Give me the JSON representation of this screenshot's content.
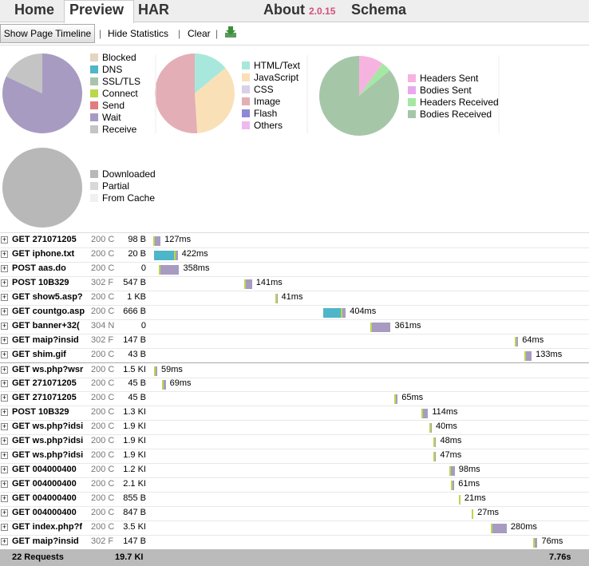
{
  "tabs": {
    "items": [
      "Home",
      "Preview",
      "HAR"
    ],
    "about": "About",
    "version": "2.0.15",
    "schema": "Schema",
    "selected": 1
  },
  "toolbar": {
    "timeline_button": "Show Page Timeline",
    "hide_stats": "Hide Statistics",
    "clear": "Clear"
  },
  "stats": {
    "pies": [
      {
        "slices": [
          {
            "name": "Blocked",
            "color": "#e3d5c0",
            "value": 0
          },
          {
            "name": "DNS",
            "color": "#4fb5c9",
            "value": 0
          },
          {
            "name": "SSL/TLS",
            "color": "#a9c4ad",
            "value": 0
          },
          {
            "name": "Connect",
            "color": "#b9d84a",
            "value": 0
          },
          {
            "name": "Send",
            "color": "#e07d7d",
            "value": 0
          },
          {
            "name": "Wait",
            "color": "#a89bc2",
            "value": 82
          },
          {
            "name": "Receive",
            "color": "#c4c4c4",
            "value": 18
          }
        ]
      },
      {
        "slices": [
          {
            "name": "HTML/Text",
            "color": "#a8e8dc",
            "value": 14
          },
          {
            "name": "JavaScript",
            "color": "#fae0b7",
            "value": 35
          },
          {
            "name": "CSS",
            "color": "#d8d0e8",
            "value": 0
          },
          {
            "name": "Image",
            "color": "#e3aeb6",
            "value": 51
          },
          {
            "name": "Flash",
            "color": "#8e88d8",
            "value": 0
          },
          {
            "name": "Others",
            "color": "#f0b8f0",
            "value": 0
          }
        ]
      },
      {
        "slices": [
          {
            "name": "Headers Sent",
            "color": "#f7b3e0",
            "value": 10
          },
          {
            "name": "Bodies Sent",
            "color": "#e7a8f0",
            "value": 0
          },
          {
            "name": "Headers Received",
            "color": "#a4e8a4",
            "value": 4
          },
          {
            "name": "Bodies Received",
            "color": "#a5c7a8",
            "value": 86
          }
        ]
      },
      {
        "slices": [
          {
            "name": "Downloaded",
            "color": "#b8b8b8",
            "value": 100
          },
          {
            "name": "Partial",
            "color": "#d8d8d8",
            "value": 0
          },
          {
            "name": "From Cache",
            "color": "#f0f0f0",
            "value": 0
          }
        ]
      }
    ]
  },
  "requests": {
    "total_time": 7760,
    "rows": [
      {
        "method_url": "GET 271071205",
        "status": "200 C",
        "size": "98 B",
        "start": 30,
        "time": 127,
        "time_label": "127ms"
      },
      {
        "method_url": "GET iphone.txt",
        "status": "200 C",
        "size": "20 B",
        "start": 40,
        "time": 422,
        "time_label": "422ms",
        "dns": 350
      },
      {
        "method_url": "POST aas.do",
        "status": "200 C",
        "size": "0",
        "start": 130,
        "time": 358,
        "time_label": "358ms"
      },
      {
        "method_url": "POST 10B329",
        "status": "302 F",
        "size": "547 B",
        "start": 1640,
        "time": 141,
        "time_label": "141ms"
      },
      {
        "method_url": "GET show5.asp?",
        "status": "200 C",
        "size": "1 KB",
        "start": 2190,
        "time": 41,
        "time_label": "41ms"
      },
      {
        "method_url": "GET countgo.asp",
        "status": "200 C",
        "size": "666 B",
        "start": 3040,
        "time": 404,
        "time_label": "404ms",
        "dns": 320
      },
      {
        "method_url": "GET banner+32(",
        "status": "304 N",
        "size": "0",
        "start": 3880,
        "time": 361,
        "time_label": "361ms"
      },
      {
        "method_url": "GET maip?insid",
        "status": "302 F",
        "size": "147 B",
        "start": 6440,
        "time": 64,
        "time_label": "64ms"
      },
      {
        "method_url": "GET shim.gif",
        "status": "200 C",
        "size": "43 B",
        "start": 6610,
        "time": 133,
        "time_label": "133ms"
      },
      {
        "method_url": "GET ws.php?wsr",
        "status": "200 C",
        "size": "1.5 KI",
        "start": 40,
        "time": 59,
        "time_label": "59ms"
      },
      {
        "method_url": "GET 271071205",
        "status": "200 C",
        "size": "45 B",
        "start": 180,
        "time": 69,
        "time_label": "69ms"
      },
      {
        "method_url": "GET 271071205",
        "status": "200 C",
        "size": "45 B",
        "start": 4300,
        "time": 65,
        "time_label": "65ms"
      },
      {
        "method_url": "POST 10B329",
        "status": "200 C",
        "size": "1.3 KI",
        "start": 4790,
        "time": 114,
        "time_label": "114ms"
      },
      {
        "method_url": "GET ws.php?idsi",
        "status": "200 C",
        "size": "1.9 KI",
        "start": 4930,
        "time": 40,
        "time_label": "40ms"
      },
      {
        "method_url": "GET ws.php?idsi",
        "status": "200 C",
        "size": "1.9 KI",
        "start": 5000,
        "time": 48,
        "time_label": "48ms"
      },
      {
        "method_url": "GET ws.php?idsi",
        "status": "200 C",
        "size": "1.9 KI",
        "start": 5000,
        "time": 47,
        "time_label": "47ms"
      },
      {
        "method_url": "GET 004000400",
        "status": "200 C",
        "size": "1.2 KI",
        "start": 5280,
        "time": 98,
        "time_label": "98ms"
      },
      {
        "method_url": "GET 004000400",
        "status": "200 C",
        "size": "2.1 KI",
        "start": 5310,
        "time": 61,
        "time_label": "61ms"
      },
      {
        "method_url": "GET 004000400",
        "status": "200 C",
        "size": "855 B",
        "start": 5450,
        "time": 21,
        "time_label": "21ms"
      },
      {
        "method_url": "GET 004000400",
        "status": "200 C",
        "size": "847 B",
        "start": 5680,
        "time": 27,
        "time_label": "27ms"
      },
      {
        "method_url": "GET index.php?f",
        "status": "200 C",
        "size": "3.5 KI",
        "start": 6020,
        "time": 280,
        "time_label": "280ms"
      },
      {
        "method_url": "GET maip?insid",
        "status": "302 F",
        "size": "147 B",
        "start": 6770,
        "time": 76,
        "time_label": "76ms"
      }
    ],
    "footer": {
      "count": "22 Requests",
      "size": "19.7 KI",
      "time": "7.76s"
    }
  }
}
